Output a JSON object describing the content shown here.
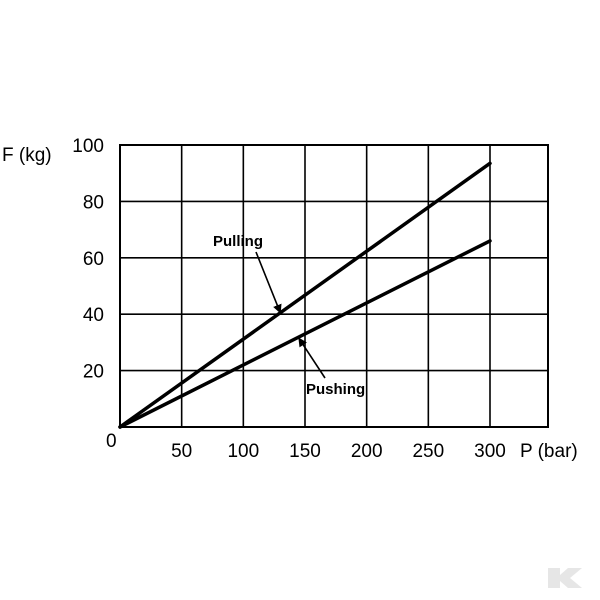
{
  "chart_data": {
    "type": "line",
    "xlabel": "P (bar)",
    "ylabel": "F (kg)",
    "xlim": [
      0,
      300
    ],
    "ylim": [
      0,
      100
    ],
    "x_ticks": [
      50,
      100,
      150,
      200,
      250,
      300
    ],
    "x_tick_labels": [
      "50",
      "100",
      "150",
      "200",
      "250",
      "300"
    ],
    "y_ticks": [
      20,
      40,
      60,
      80,
      100
    ],
    "y_tick_labels": [
      "20",
      "40",
      "60",
      "80",
      "100"
    ],
    "origin_label": "0",
    "grid": true,
    "series": [
      {
        "name": "Pulling",
        "x": [
          0,
          300
        ],
        "y": [
          0,
          93.5
        ]
      },
      {
        "name": "Pushing",
        "x": [
          0,
          300
        ],
        "y": [
          0,
          66
        ]
      }
    ],
    "annotations": [
      {
        "text": "Pulling",
        "points_to": {
          "x": 130,
          "y": 40.5
        }
      },
      {
        "text": "Pushing",
        "points_to": {
          "x": 145,
          "y": 31.5
        }
      }
    ]
  },
  "watermark": {
    "brand_icon": "kramp-k-logo-icon",
    "color": "#e6e6e6"
  }
}
